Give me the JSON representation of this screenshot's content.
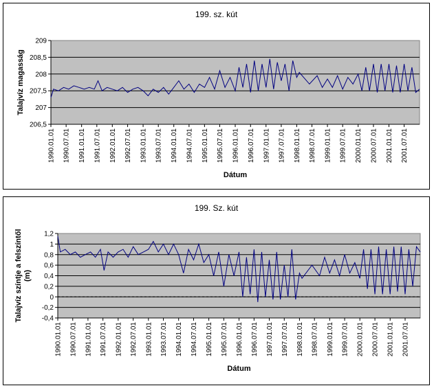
{
  "chart_data": [
    {
      "type": "line",
      "title": "199. sz. kút",
      "xlabel": "Dátum",
      "ylabel": "Talajvíz magasság",
      "ylim": [
        206.5,
        209
      ],
      "yticks": [
        "206,5",
        "207",
        "207,5",
        "208",
        "208,5",
        "209"
      ],
      "ytick_values": [
        206.5,
        207,
        207.5,
        208,
        208.5,
        209
      ],
      "xticks": [
        "1990.01.01",
        "1990.07.01",
        "1991.01.01",
        "1991.07.01",
        "1992.01.01",
        "1992.07.01",
        "1993.01.01",
        "1993.07.01",
        "1994.01.01",
        "1994.07.01",
        "1995.01.01",
        "1995.07.01",
        "1996.01.01",
        "1996.07.01",
        "1997.01.01",
        "1997.07.01",
        "1998.01.01",
        "1998.07.01",
        "1999.01.01",
        "1999.07.01",
        "2000.01.01",
        "2000.07.01",
        "2001.01.01",
        "2001.07.01"
      ],
      "xlim": [
        "1990-01-01",
        "2001-12-31"
      ],
      "grid": true,
      "line_color": "#000080",
      "plot_bg": "#c0c0c0",
      "series": [
        {
          "values": [
            [
              "1990-01-01",
              207.3
            ],
            [
              "1990-02-01",
              207.55
            ],
            [
              "1990-04-01",
              207.5
            ],
            [
              "1990-06-01",
              207.6
            ],
            [
              "1990-08-01",
              207.55
            ],
            [
              "1990-10-01",
              207.65
            ],
            [
              "1990-12-01",
              207.6
            ],
            [
              "1991-02-01",
              207.55
            ],
            [
              "1991-04-01",
              207.6
            ],
            [
              "1991-06-01",
              207.55
            ],
            [
              "1991-07-15",
              207.8
            ],
            [
              "1991-09-01",
              207.5
            ],
            [
              "1991-11-01",
              207.6
            ],
            [
              "1992-01-01",
              207.55
            ],
            [
              "1992-03-01",
              207.5
            ],
            [
              "1992-05-01",
              207.6
            ],
            [
              "1992-07-01",
              207.45
            ],
            [
              "1992-09-01",
              207.55
            ],
            [
              "1992-11-01",
              207.6
            ],
            [
              "1993-01-01",
              207.5
            ],
            [
              "1993-03-01",
              207.35
            ],
            [
              "1993-05-01",
              207.55
            ],
            [
              "1993-07-01",
              207.45
            ],
            [
              "1993-09-01",
              207.6
            ],
            [
              "1993-11-01",
              207.4
            ],
            [
              "1994-01-01",
              207.6
            ],
            [
              "1994-03-01",
              207.8
            ],
            [
              "1994-05-01",
              207.55
            ],
            [
              "1994-07-01",
              207.7
            ],
            [
              "1994-09-01",
              207.45
            ],
            [
              "1994-11-01",
              207.7
            ],
            [
              "1995-01-01",
              207.6
            ],
            [
              "1995-03-01",
              207.9
            ],
            [
              "1995-05-01",
              207.55
            ],
            [
              "1995-07-01",
              208.1
            ],
            [
              "1995-09-01",
              207.6
            ],
            [
              "1995-11-01",
              207.9
            ],
            [
              "1996-01-01",
              207.5
            ],
            [
              "1996-02-15",
              208.2
            ],
            [
              "1996-04-01",
              207.6
            ],
            [
              "1996-05-15",
              208.3
            ],
            [
              "1996-07-01",
              207.45
            ],
            [
              "1996-08-15",
              208.4
            ],
            [
              "1996-10-01",
              207.5
            ],
            [
              "1996-11-15",
              208.3
            ],
            [
              "1997-01-01",
              207.6
            ],
            [
              "1997-02-15",
              208.45
            ],
            [
              "1997-04-01",
              207.55
            ],
            [
              "1997-05-15",
              208.35
            ],
            [
              "1997-07-01",
              207.8
            ],
            [
              "1997-08-15",
              208.3
            ],
            [
              "1997-10-01",
              207.5
            ],
            [
              "1997-11-15",
              208.4
            ],
            [
              "1998-01-01",
              207.9
            ],
            [
              "1998-02-01",
              208.05
            ],
            [
              "1998-06-01",
              207.7
            ],
            [
              "1998-09-01",
              207.95
            ],
            [
              "1998-11-01",
              207.6
            ],
            [
              "1999-01-01",
              207.85
            ],
            [
              "1999-03-01",
              207.6
            ],
            [
              "1999-05-01",
              207.95
            ],
            [
              "1999-07-01",
              207.55
            ],
            [
              "1999-09-01",
              207.9
            ],
            [
              "1999-11-01",
              207.7
            ],
            [
              "2000-01-01",
              208.0
            ],
            [
              "2000-02-15",
              207.5
            ],
            [
              "2000-04-01",
              208.2
            ],
            [
              "2000-05-15",
              207.5
            ],
            [
              "2000-07-01",
              208.3
            ],
            [
              "2000-08-15",
              207.45
            ],
            [
              "2000-10-01",
              208.3
            ],
            [
              "2000-11-15",
              207.5
            ],
            [
              "2001-01-01",
              208.3
            ],
            [
              "2001-02-15",
              207.45
            ],
            [
              "2001-04-01",
              208.25
            ],
            [
              "2001-05-15",
              207.45
            ],
            [
              "2001-07-01",
              208.3
            ],
            [
              "2001-08-15",
              207.5
            ],
            [
              "2001-10-01",
              208.2
            ],
            [
              "2001-11-15",
              207.45
            ],
            [
              "2001-12-31",
              207.55
            ]
          ]
        }
      ]
    },
    {
      "type": "line",
      "title": "199. Sz. kút",
      "xlabel": "Dátum",
      "ylabel": "Talajvíz színtje a felszíntől (m)",
      "ylim": [
        -0.4,
        1.2
      ],
      "yticks": [
        "-0,4",
        "-0,2",
        "0",
        "0,2",
        "0,4",
        "0,6",
        "0,8",
        "1",
        "1,2"
      ],
      "ytick_values": [
        -0.4,
        -0.2,
        0,
        0.2,
        0.4,
        0.6,
        0.8,
        1,
        1.2
      ],
      "xticks": [
        "1990.01.01",
        "1990.07.01",
        "1991.01.01",
        "1991.07.01",
        "1992.01.01",
        "1992.07.01",
        "1993.01.01",
        "1993.07.01",
        "1994.01.01",
        "1994.07.01",
        "1995.01.01",
        "1995.07.01",
        "1996.01.01",
        "1996.07.01",
        "1997.01.01",
        "1997.07.01",
        "1998.01.01",
        "1998.07.01",
        "1999.01.01",
        "1999.07.01",
        "2000.01.01",
        "2000.07.01",
        "2001.01.01",
        "2001.07.01"
      ],
      "xlim": [
        "1990-01-01",
        "2001-12-31"
      ],
      "grid": true,
      "line_color": "#000080",
      "plot_bg": "#c0c0c0",
      "series": [
        {
          "values": [
            [
              "1990-01-01",
              1.15
            ],
            [
              "1990-02-01",
              0.85
            ],
            [
              "1990-04-01",
              0.9
            ],
            [
              "1990-06-01",
              0.8
            ],
            [
              "1990-08-01",
              0.85
            ],
            [
              "1990-10-01",
              0.75
            ],
            [
              "1990-12-01",
              0.8
            ],
            [
              "1991-02-01",
              0.85
            ],
            [
              "1991-04-01",
              0.75
            ],
            [
              "1991-06-01",
              0.9
            ],
            [
              "1991-07-15",
              0.5
            ],
            [
              "1991-09-01",
              0.85
            ],
            [
              "1991-11-01",
              0.75
            ],
            [
              "1992-01-01",
              0.85
            ],
            [
              "1992-03-01",
              0.9
            ],
            [
              "1992-05-01",
              0.75
            ],
            [
              "1992-07-01",
              0.95
            ],
            [
              "1992-09-01",
              0.8
            ],
            [
              "1992-11-01",
              0.85
            ],
            [
              "1993-01-01",
              0.9
            ],
            [
              "1993-03-01",
              1.05
            ],
            [
              "1993-05-01",
              0.85
            ],
            [
              "1993-07-01",
              1.0
            ],
            [
              "1993-09-01",
              0.8
            ],
            [
              "1993-11-01",
              1.0
            ],
            [
              "1994-01-01",
              0.8
            ],
            [
              "1994-03-01",
              0.45
            ],
            [
              "1994-05-01",
              0.9
            ],
            [
              "1994-07-01",
              0.7
            ],
            [
              "1994-09-01",
              1.0
            ],
            [
              "1994-11-01",
              0.65
            ],
            [
              "1995-01-01",
              0.8
            ],
            [
              "1995-03-01",
              0.4
            ],
            [
              "1995-05-01",
              0.85
            ],
            [
              "1995-07-01",
              0.2
            ],
            [
              "1995-09-01",
              0.8
            ],
            [
              "1995-11-01",
              0.4
            ],
            [
              "1996-01-01",
              0.85
            ],
            [
              "1996-02-15",
              0.0
            ],
            [
              "1996-04-01",
              0.75
            ],
            [
              "1996-05-15",
              0.05
            ],
            [
              "1996-07-01",
              0.9
            ],
            [
              "1996-08-15",
              -0.1
            ],
            [
              "1996-10-01",
              0.85
            ],
            [
              "1996-11-15",
              0.0
            ],
            [
              "1997-01-01",
              0.7
            ],
            [
              "1997-02-15",
              -0.05
            ],
            [
              "1997-04-01",
              0.85
            ],
            [
              "1997-05-15",
              -0.05
            ],
            [
              "1997-07-01",
              0.6
            ],
            [
              "1997-08-15",
              0.0
            ],
            [
              "1997-10-01",
              0.9
            ],
            [
              "1997-11-15",
              -0.05
            ],
            [
              "1998-01-01",
              0.45
            ],
            [
              "1998-02-01",
              0.35
            ],
            [
              "1998-06-01",
              0.6
            ],
            [
              "1998-09-01",
              0.4
            ],
            [
              "1998-11-01",
              0.75
            ],
            [
              "1999-01-01",
              0.45
            ],
            [
              "1999-03-01",
              0.7
            ],
            [
              "1999-05-01",
              0.4
            ],
            [
              "1999-07-01",
              0.8
            ],
            [
              "1999-09-01",
              0.45
            ],
            [
              "1999-11-01",
              0.65
            ],
            [
              "2000-01-01",
              0.35
            ],
            [
              "2000-02-15",
              0.9
            ],
            [
              "2000-04-01",
              0.15
            ],
            [
              "2000-05-15",
              0.9
            ],
            [
              "2000-07-01",
              0.05
            ],
            [
              "2000-08-15",
              0.95
            ],
            [
              "2000-10-01",
              0.05
            ],
            [
              "2000-11-15",
              0.9
            ],
            [
              "2001-01-01",
              0.05
            ],
            [
              "2001-02-15",
              0.95
            ],
            [
              "2001-04-01",
              0.1
            ],
            [
              "2001-05-15",
              0.95
            ],
            [
              "2001-07-01",
              0.05
            ],
            [
              "2001-08-15",
              0.9
            ],
            [
              "2001-10-01",
              0.2
            ],
            [
              "2001-11-15",
              0.95
            ],
            [
              "2001-12-31",
              0.85
            ]
          ]
        }
      ]
    }
  ]
}
